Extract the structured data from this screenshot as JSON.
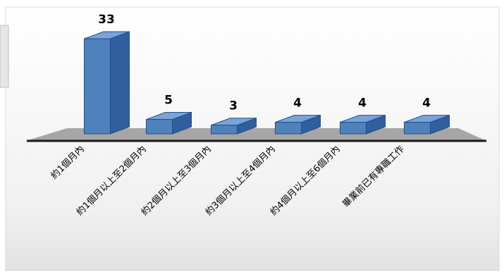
{
  "chart_data": {
    "type": "bar",
    "title": "",
    "xlabel": "",
    "ylabel": "",
    "categories": [
      "約1個月內",
      "約1個月以上至2個月內",
      "約2個月以上至3個月內",
      "約3個月以上至4個月內",
      "約4個月以上至6個月內",
      "畢業前已有專職工作"
    ],
    "values": [
      33,
      5,
      3,
      4,
      4,
      4
    ],
    "ylim": [
      0,
      33
    ],
    "grid": false,
    "legend": "none",
    "style": "3d-column",
    "colors": {
      "bar_front": "#4f81bd",
      "bar_side": "#2f5f9e",
      "bar_top": "#7aa3d6",
      "bar_stroke": "#1f4e8c",
      "floor": "#a6a6a6",
      "floor_edge": "#1a1a1a"
    }
  }
}
